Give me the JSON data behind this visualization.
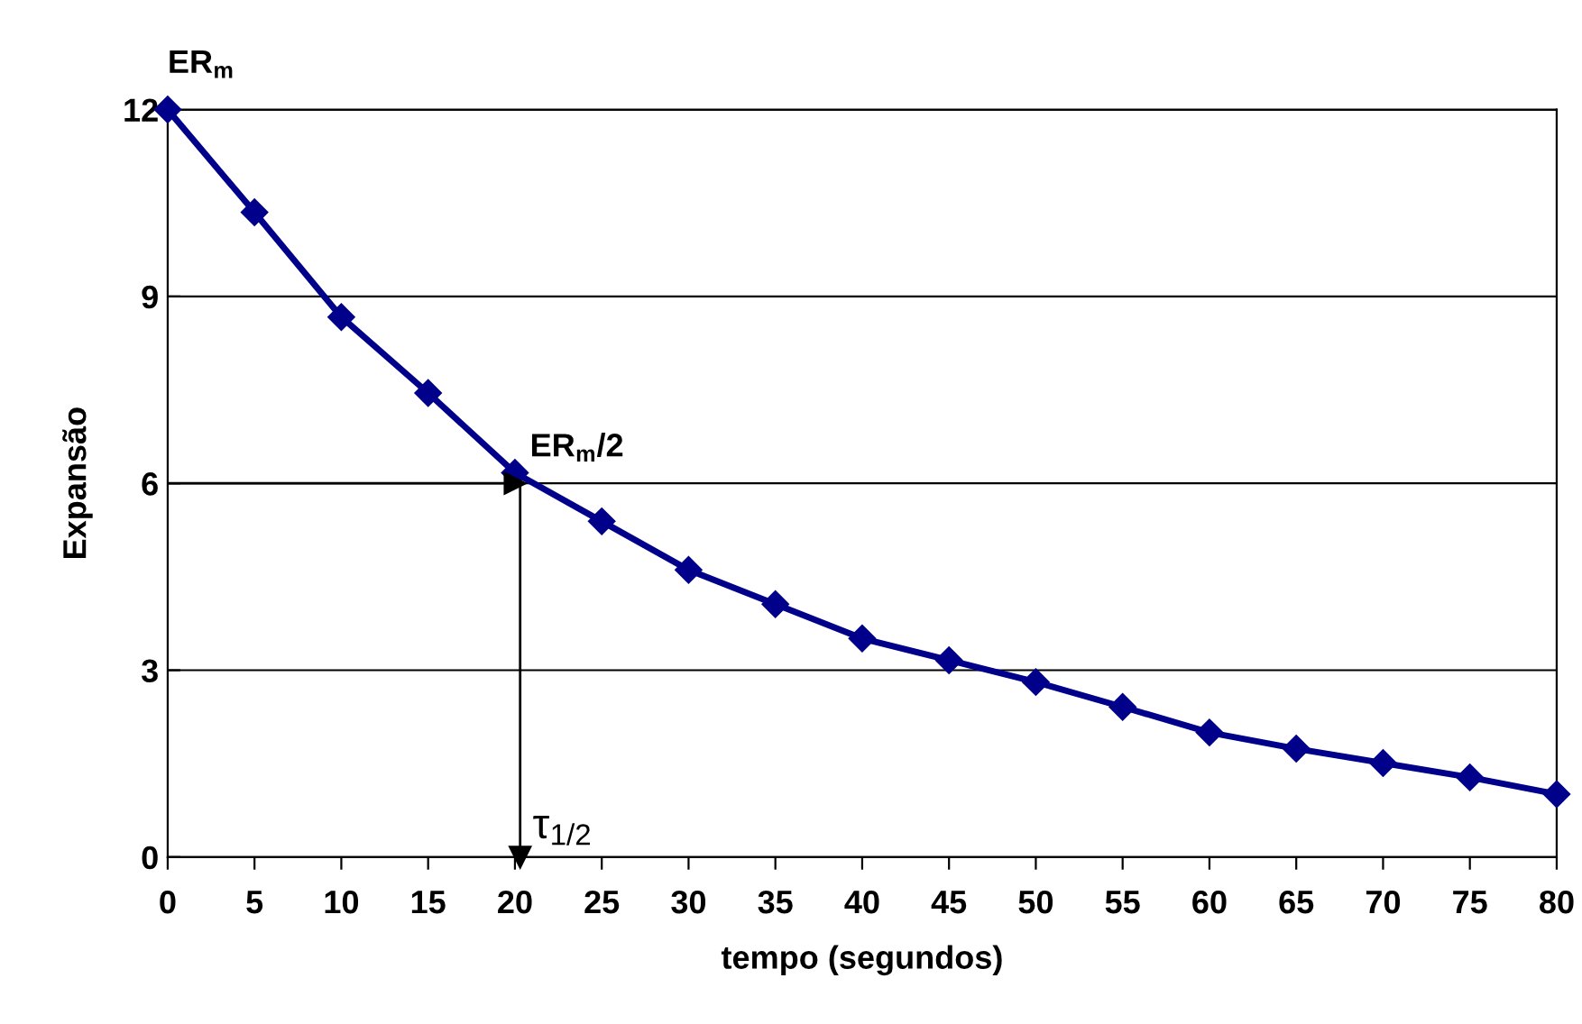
{
  "chart_data": {
    "type": "line",
    "xlabel": "tempo (segundos)",
    "ylabel": "Expansão",
    "x": [
      0,
      5,
      10,
      15,
      20,
      25,
      30,
      35,
      40,
      45,
      50,
      55,
      60,
      65,
      70,
      75,
      80
    ],
    "series": [
      {
        "color": "#00008b",
        "values": [
          12,
          10.35,
          8.67,
          7.45,
          6.17,
          5.39,
          4.61,
          4.06,
          3.51,
          3.16,
          2.81,
          2.41,
          2.0,
          1.74,
          1.51,
          1.28,
          1.01
        ]
      }
    ],
    "xlim": [
      0,
      80
    ],
    "xticks": [
      0,
      5,
      10,
      15,
      20,
      25,
      30,
      35,
      40,
      45,
      50,
      55,
      60,
      65,
      70,
      75,
      80
    ],
    "ylim": [
      0,
      12
    ],
    "yticks": [
      0,
      3,
      6,
      9,
      12
    ],
    "grid": "y",
    "marker": "diamond",
    "line_style": "solid",
    "annotations": [
      "ER$_{m}$"
    ],
    "ref_lines": [
      {
        "axis": "y",
        "value": 6,
        "label": "ER$_{m}$/2"
      },
      {
        "axis": "x",
        "value": 20,
        "label": "τ$_{1/2}$"
      }
    ]
  }
}
